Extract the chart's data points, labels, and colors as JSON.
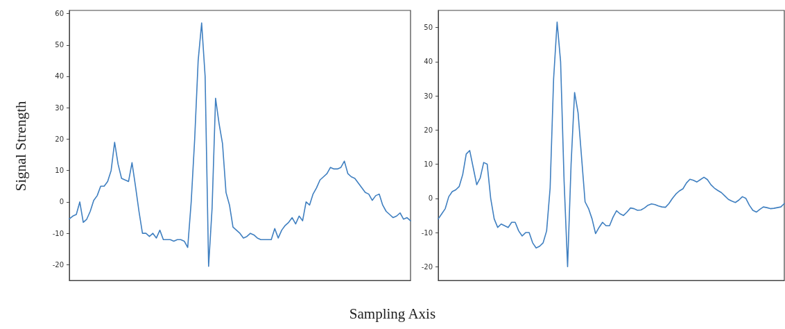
{
  "chart_data": [
    {
      "type": "line",
      "ylabel": "Signal Strength",
      "xlabel": "Sampling Axis",
      "tick_labels": "y",
      "grid": false,
      "line_style": "solid",
      "categories": [
        null,
        null,
        null,
        null,
        null,
        null,
        null,
        null,
        null,
        null,
        null,
        null,
        null,
        null,
        null,
        null,
        null,
        null,
        null,
        null,
        null,
        null,
        null,
        null,
        null,
        null,
        null,
        null,
        null,
        null,
        null,
        null,
        null,
        null,
        null,
        null,
        null,
        null,
        null,
        null,
        null,
        null,
        null,
        null,
        null,
        null,
        null,
        null,
        null,
        null,
        null,
        null,
        null,
        null,
        null,
        null,
        null,
        null,
        null,
        null,
        null,
        null,
        null,
        null,
        null,
        null,
        null,
        null,
        null,
        null,
        null,
        null,
        null,
        null,
        null,
        null,
        null,
        null,
        null,
        null,
        null,
        null,
        null,
        null,
        null,
        null,
        null,
        null,
        null,
        null,
        null,
        null,
        null,
        null,
        null,
        null,
        null,
        null,
        null
      ],
      "series": [
        {
          "color": "#3f7fc0",
          "values": [
            -5.4,
            -4.5,
            -4,
            0,
            -6.5,
            -5.5,
            -3,
            0.5,
            2,
            5,
            5,
            6.5,
            10,
            19,
            12,
            7.5,
            7,
            6.5,
            12.5,
            5,
            -3,
            -10,
            -10,
            -11,
            -10,
            -11.5,
            -9,
            -12,
            -12,
            -12,
            -12.5,
            -12,
            -12,
            -12.5,
            -14.5,
            0,
            20,
            45,
            57,
            40,
            -20.5,
            -2,
            33,
            25,
            18.5,
            3,
            -1,
            -8,
            -9,
            -10,
            -11.5,
            -11,
            -10,
            -10.5,
            -11.5,
            -12,
            -12,
            -12,
            -12,
            -8.5,
            -11.5,
            -9,
            -7.5,
            -6.5,
            -5,
            -7,
            -4.5,
            -6,
            0,
            -1,
            2.5,
            4.5,
            7,
            8,
            9,
            11,
            10.5,
            10.5,
            11,
            13,
            9,
            8,
            7.5,
            6,
            4.5,
            3,
            2.5,
            0.5,
            2,
            2.5,
            -1,
            -3,
            -4,
            -5,
            -4.5,
            -3.5,
            -5.5,
            -5,
            -6
          ]
        }
      ],
      "ylim": [
        -25,
        61
      ],
      "yticks": [
        -20,
        -10,
        0,
        10,
        20,
        30,
        40,
        50,
        60
      ]
    },
    {
      "type": "line",
      "tick_labels": "y",
      "grid": false,
      "line_style": "solid",
      "categories": [
        null,
        null,
        null,
        null,
        null,
        null,
        null,
        null,
        null,
        null,
        null,
        null,
        null,
        null,
        null,
        null,
        null,
        null,
        null,
        null,
        null,
        null,
        null,
        null,
        null,
        null,
        null,
        null,
        null,
        null,
        null,
        null,
        null,
        null,
        null,
        null,
        null,
        null,
        null,
        null,
        null,
        null,
        null,
        null,
        null,
        null,
        null,
        null,
        null,
        null,
        null,
        null,
        null,
        null,
        null,
        null,
        null,
        null,
        null,
        null,
        null,
        null,
        null,
        null,
        null,
        null,
        null,
        null,
        null,
        null,
        null,
        null,
        null,
        null,
        null,
        null,
        null,
        null,
        null,
        null,
        null,
        null,
        null,
        null,
        null,
        null,
        null,
        null,
        null,
        null,
        null,
        null,
        null,
        null,
        null,
        null,
        null,
        null,
        null,
        null
      ],
      "series": [
        {
          "color": "#3f7fc0",
          "values": [
            -6,
            -4.5,
            -3,
            0.5,
            2,
            2.5,
            3.5,
            7,
            13,
            14,
            9,
            4,
            6,
            10.5,
            10,
            0,
            -6,
            -8.5,
            -7.5,
            -8,
            -8.5,
            -7,
            -7,
            -9.5,
            -11,
            -10,
            -10,
            -13,
            -14.5,
            -14,
            -13,
            -9.5,
            3,
            35,
            51.6,
            40,
            5,
            -20,
            10,
            31,
            25,
            12,
            -1,
            -3,
            -6,
            -10.3,
            -8.5,
            -7,
            -8,
            -8,
            -5.5,
            -3.6,
            -4.5,
            -5,
            -4,
            -2.8,
            -3,
            -3.5,
            -3.4,
            -2.8,
            -2,
            -1.6,
            -1.8,
            -2.2,
            -2.5,
            -2.6,
            -1.5,
            0,
            1.3,
            2.2,
            2.8,
            4.5,
            5.6,
            5.3,
            4.8,
            5.5,
            6.2,
            5.5,
            4,
            3,
            2.3,
            1.7,
            0.7,
            -0.3,
            -0.8,
            -1.2,
            -0.5,
            0.5,
            0,
            -2,
            -3.5,
            -4,
            -3.2,
            -2.5,
            -2.7,
            -3,
            -2.9,
            -2.7,
            -2.5,
            -1.5
          ]
        }
      ],
      "ylim": [
        -24,
        55
      ],
      "yticks": [
        -20,
        -10,
        0,
        10,
        20,
        30,
        40,
        50
      ]
    }
  ]
}
